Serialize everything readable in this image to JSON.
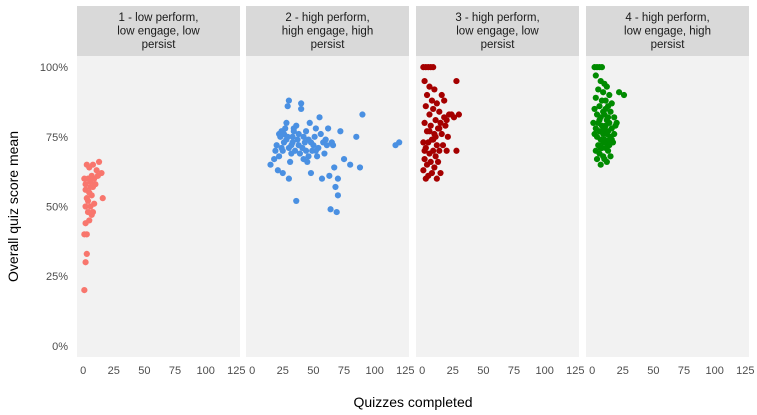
{
  "chart_data": {
    "type": "scatter",
    "xlabel": "Quizzes completed",
    "ylabel": "Overall quiz score mean",
    "xlim": [
      -5,
      128
    ],
    "ylim": [
      -0.04,
      1.04
    ],
    "xticks": [
      0,
      25,
      50,
      75,
      100,
      125
    ],
    "xtick_labels": [
      "0",
      "25",
      "50",
      "75",
      "100",
      "125"
    ],
    "yticks": [
      0,
      0.25,
      0.5,
      0.75,
      1.0
    ],
    "ytick_labels": [
      "0%",
      "25%",
      "50%",
      "75%",
      "100%"
    ],
    "panel_background": "#f2f2f2",
    "strip_background": "#d9d9d9",
    "panels": [
      {
        "title": "1 - low perform,\nlow engage, low\npersist",
        "color": "#f8766d",
        "points": [
          [
            1,
            0.2
          ],
          [
            2,
            0.3
          ],
          [
            3,
            0.33
          ],
          [
            1,
            0.4
          ],
          [
            3,
            0.4
          ],
          [
            2,
            0.44
          ],
          [
            5,
            0.45
          ],
          [
            7,
            0.47
          ],
          [
            4,
            0.48
          ],
          [
            8,
            0.48
          ],
          [
            2,
            0.5
          ],
          [
            6,
            0.5
          ],
          [
            9,
            0.51
          ],
          [
            4,
            0.52
          ],
          [
            3,
            0.53
          ],
          [
            7,
            0.54
          ],
          [
            5,
            0.55
          ],
          [
            16,
            0.53
          ],
          [
            2,
            0.56
          ],
          [
            8,
            0.57
          ],
          [
            10,
            0.58
          ],
          [
            6,
            0.57
          ],
          [
            4,
            0.6
          ],
          [
            1,
            0.6
          ],
          [
            9,
            0.6
          ],
          [
            7,
            0.61
          ],
          [
            12,
            0.61
          ],
          [
            15,
            0.62
          ],
          [
            11,
            0.63
          ],
          [
            5,
            0.64
          ],
          [
            3,
            0.65
          ],
          [
            8,
            0.65
          ],
          [
            13,
            0.66
          ],
          [
            2,
            0.58
          ],
          [
            6,
            0.59
          ]
        ]
      },
      {
        "title": "2 - high perform,\nhigh engage, high\npersist",
        "color": "#4a90e2",
        "points": [
          [
            15,
            0.65
          ],
          [
            18,
            0.67
          ],
          [
            19,
            0.7
          ],
          [
            20,
            0.72
          ],
          [
            21,
            0.63
          ],
          [
            22,
            0.68
          ],
          [
            23,
            0.75
          ],
          [
            24,
            0.77
          ],
          [
            25,
            0.62
          ],
          [
            25,
            0.7
          ],
          [
            26,
            0.73
          ],
          [
            27,
            0.78
          ],
          [
            28,
            0.8
          ],
          [
            29,
            0.86
          ],
          [
            30,
            0.88
          ],
          [
            30,
            0.6
          ],
          [
            31,
            0.66
          ],
          [
            32,
            0.72
          ],
          [
            33,
            0.75
          ],
          [
            34,
            0.78
          ],
          [
            35,
            0.7
          ],
          [
            36,
            0.52
          ],
          [
            37,
            0.74
          ],
          [
            38,
            0.76
          ],
          [
            39,
            0.69
          ],
          [
            40,
            0.87
          ],
          [
            40,
            0.85
          ],
          [
            41,
            0.71
          ],
          [
            42,
            0.67
          ],
          [
            43,
            0.73
          ],
          [
            44,
            0.77
          ],
          [
            45,
            0.66
          ],
          [
            46,
            0.74
          ],
          [
            47,
            0.8
          ],
          [
            48,
            0.62
          ],
          [
            49,
            0.7
          ],
          [
            50,
            0.72
          ],
          [
            51,
            0.75
          ],
          [
            52,
            0.78
          ],
          [
            53,
            0.68
          ],
          [
            54,
            0.71
          ],
          [
            55,
            0.82
          ],
          [
            56,
            0.76
          ],
          [
            57,
            0.6
          ],
          [
            58,
            0.73
          ],
          [
            59,
            0.69
          ],
          [
            60,
            0.74
          ],
          [
            61,
            0.72
          ],
          [
            62,
            0.78
          ],
          [
            63,
            0.61
          ],
          [
            64,
            0.49
          ],
          [
            65,
            0.73
          ],
          [
            66,
            0.72
          ],
          [
            67,
            0.64
          ],
          [
            68,
            0.57
          ],
          [
            69,
            0.48
          ],
          [
            70,
            0.54
          ],
          [
            70,
            0.6
          ],
          [
            72,
            0.77
          ],
          [
            75,
            0.67
          ],
          [
            80,
            0.65
          ],
          [
            85,
            0.75
          ],
          [
            88,
            0.64
          ],
          [
            90,
            0.83
          ],
          [
            117,
            0.72
          ],
          [
            120,
            0.73
          ],
          [
            26,
            0.76
          ],
          [
            28,
            0.74
          ],
          [
            30,
            0.71
          ],
          [
            32,
            0.69
          ],
          [
            34,
            0.77
          ],
          [
            36,
            0.79
          ],
          [
            38,
            0.72
          ],
          [
            42,
            0.75
          ],
          [
            44,
            0.7
          ],
          [
            46,
            0.68
          ],
          [
            48,
            0.73
          ],
          [
            52,
            0.7
          ],
          [
            24,
            0.71
          ],
          [
            22,
            0.76
          ],
          [
            29,
            0.75
          ],
          [
            33,
            0.73
          ]
        ]
      },
      {
        "title": "3 - high perform,\nlow engage, low\npersist",
        "color": "#a50000",
        "points": [
          [
            1,
            1.0
          ],
          [
            3,
            1.0
          ],
          [
            5,
            1.0
          ],
          [
            7,
            1.0
          ],
          [
            9,
            1.0
          ],
          [
            2,
            0.95
          ],
          [
            6,
            0.93
          ],
          [
            10,
            0.92
          ],
          [
            4,
            0.9
          ],
          [
            8,
            0.88
          ],
          [
            12,
            0.87
          ],
          [
            3,
            0.86
          ],
          [
            9,
            0.85
          ],
          [
            14,
            0.84
          ],
          [
            6,
            0.83
          ],
          [
            18,
            0.82
          ],
          [
            22,
            0.83
          ],
          [
            26,
            0.82
          ],
          [
            11,
            0.81
          ],
          [
            15,
            0.8
          ],
          [
            2,
            0.8
          ],
          [
            7,
            0.79
          ],
          [
            19,
            0.79
          ],
          [
            13,
            0.78
          ],
          [
            4,
            0.77
          ],
          [
            10,
            0.76
          ],
          [
            16,
            0.76
          ],
          [
            21,
            0.75
          ],
          [
            8,
            0.74
          ],
          [
            1,
            0.73
          ],
          [
            5,
            0.73
          ],
          [
            12,
            0.72
          ],
          [
            17,
            0.72
          ],
          [
            3,
            0.71
          ],
          [
            9,
            0.7
          ],
          [
            14,
            0.7
          ],
          [
            20,
            0.7
          ],
          [
            28,
            0.7
          ],
          [
            6,
            0.69
          ],
          [
            11,
            0.68
          ],
          [
            2,
            0.67
          ],
          [
            7,
            0.66
          ],
          [
            13,
            0.66
          ],
          [
            4,
            0.65
          ],
          [
            10,
            0.64
          ],
          [
            1,
            0.63
          ],
          [
            8,
            0.62
          ],
          [
            15,
            0.62
          ],
          [
            5,
            0.61
          ],
          [
            3,
            0.6
          ],
          [
            12,
            0.6
          ],
          [
            28,
            0.95
          ],
          [
            24,
            0.83
          ],
          [
            30,
            0.83
          ],
          [
            18,
            0.88
          ],
          [
            20,
            0.81
          ],
          [
            16,
            0.9
          ],
          [
            6,
            0.77
          ],
          [
            9,
            0.74
          ],
          [
            2,
            0.7
          ],
          [
            11,
            0.75
          ],
          [
            14,
            0.78
          ]
        ]
      },
      {
        "title": "4 - high perform,\nlow engage, high\npersist",
        "color": "#008b00",
        "points": [
          [
            2,
            1.0
          ],
          [
            4,
            1.0
          ],
          [
            6,
            1.0
          ],
          [
            8,
            1.0
          ],
          [
            3,
            0.97
          ],
          [
            7,
            0.95
          ],
          [
            10,
            0.94
          ],
          [
            12,
            0.93
          ],
          [
            5,
            0.92
          ],
          [
            9,
            0.91
          ],
          [
            14,
            0.9
          ],
          [
            22,
            0.91
          ],
          [
            26,
            0.9
          ],
          [
            3,
            0.89
          ],
          [
            8,
            0.88
          ],
          [
            11,
            0.88
          ],
          [
            16,
            0.87
          ],
          [
            6,
            0.86
          ],
          [
            13,
            0.86
          ],
          [
            2,
            0.85
          ],
          [
            9,
            0.84
          ],
          [
            15,
            0.84
          ],
          [
            4,
            0.83
          ],
          [
            10,
            0.83
          ],
          [
            18,
            0.82
          ],
          [
            7,
            0.82
          ],
          [
            12,
            0.81
          ],
          [
            1,
            0.8
          ],
          [
            5,
            0.8
          ],
          [
            14,
            0.8
          ],
          [
            20,
            0.8
          ],
          [
            8,
            0.79
          ],
          [
            11,
            0.79
          ],
          [
            3,
            0.78
          ],
          [
            16,
            0.78
          ],
          [
            6,
            0.77
          ],
          [
            13,
            0.77
          ],
          [
            9,
            0.76
          ],
          [
            2,
            0.76
          ],
          [
            15,
            0.75
          ],
          [
            4,
            0.75
          ],
          [
            10,
            0.74
          ],
          [
            7,
            0.74
          ],
          [
            12,
            0.73
          ],
          [
            17,
            0.73
          ],
          [
            5,
            0.72
          ],
          [
            14,
            0.72
          ],
          [
            8,
            0.71
          ],
          [
            11,
            0.71
          ],
          [
            3,
            0.7
          ],
          [
            13,
            0.7
          ],
          [
            6,
            0.69
          ],
          [
            9,
            0.68
          ],
          [
            15,
            0.68
          ],
          [
            4,
            0.67
          ],
          [
            12,
            0.66
          ],
          [
            7,
            0.65
          ],
          [
            10,
            0.67
          ],
          [
            18,
            0.76
          ],
          [
            19,
            0.79
          ],
          [
            16,
            0.74
          ],
          [
            11,
            0.85
          ],
          [
            13,
            0.82
          ],
          [
            8,
            0.77
          ],
          [
            6,
            0.81
          ],
          [
            10,
            0.78
          ],
          [
            12,
            0.76
          ],
          [
            14,
            0.74
          ],
          [
            9,
            0.73
          ],
          [
            7,
            0.71
          ]
        ]
      }
    ]
  }
}
